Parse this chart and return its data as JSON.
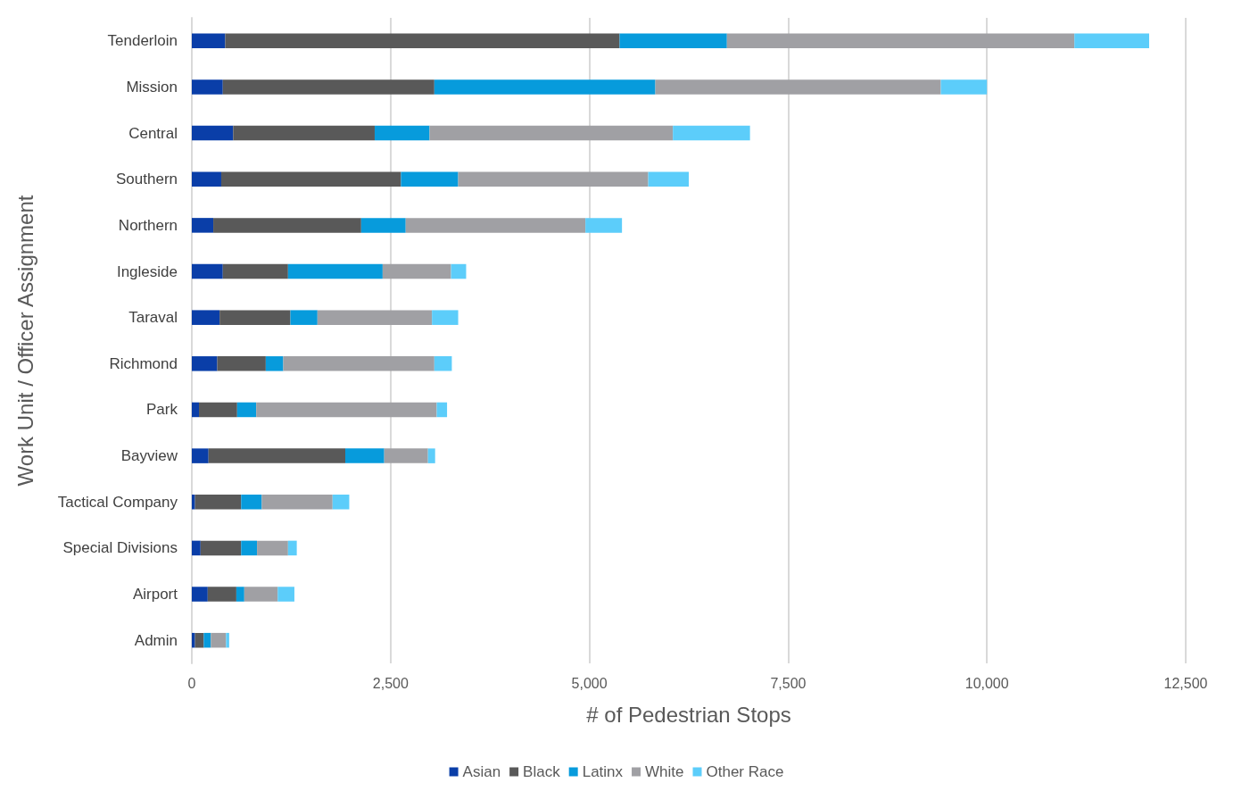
{
  "chart_data": {
    "type": "bar",
    "orientation": "horizontal",
    "stacked": true,
    "xlabel": "# of Pedestrian Stops",
    "ylabel": "Work Unit / Officer Assignment",
    "categories": [
      "Tenderloin",
      "Mission",
      "Central",
      "Southern",
      "Northern",
      "Ingleside",
      "Taraval",
      "Richmond",
      "Park",
      "Bayview",
      "Tactical Company",
      "Special Divisions",
      "Airport",
      "Admin"
    ],
    "series": [
      {
        "name": "Asian",
        "color": "#0a3ea8",
        "values": [
          420,
          390,
          520,
          370,
          270,
          390,
          350,
          320,
          90,
          210,
          40,
          110,
          200,
          40
        ]
      },
      {
        "name": "Black",
        "color": "#595959",
        "values": [
          4960,
          2660,
          1780,
          2260,
          1860,
          820,
          890,
          610,
          480,
          1720,
          580,
          510,
          360,
          110
        ]
      },
      {
        "name": "Latinx",
        "color": "#079bdc",
        "values": [
          1350,
          2780,
          690,
          720,
          560,
          1190,
          340,
          220,
          240,
          490,
          260,
          200,
          100,
          90
        ]
      },
      {
        "name": "White",
        "color": "#a0a0a4",
        "values": [
          4370,
          3590,
          3060,
          2390,
          2260,
          860,
          1440,
          1900,
          2270,
          550,
          890,
          390,
          420,
          190
        ]
      },
      {
        "name": "Other Race",
        "color": "#5ccdfa",
        "values": [
          940,
          580,
          970,
          510,
          460,
          190,
          330,
          220,
          130,
          90,
          210,
          110,
          210,
          40
        ]
      }
    ],
    "xlim": [
      0,
      12500
    ],
    "xticks": [
      0,
      {
        "value": 2500,
        "label": "2,500"
      },
      {
        "value": 5000,
        "label": "5,000"
      },
      {
        "value": 7500,
        "label": "7,500"
      },
      {
        "value": 10000,
        "label": "10,000"
      },
      {
        "value": 12500,
        "label": "12,500"
      }
    ],
    "grid": "x",
    "legend": "bottom"
  }
}
